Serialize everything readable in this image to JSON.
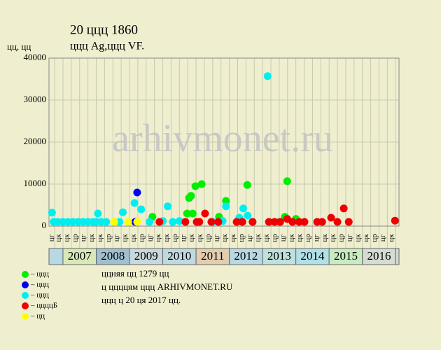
{
  "chart_data": {
    "type": "scatter",
    "title": "20 ццц 1860",
    "subtitle": "ццц Ag,ццц VF.",
    "y_label": "цц, цц",
    "watermark": "arhivmonet.ru",
    "xlim": [
      2006.58,
      2017.1
    ],
    "xticks": [
      2007,
      2008,
      2009,
      2010,
      2011,
      2012,
      2013,
      2014,
      2015,
      2016
    ],
    "year_colors": [
      "#d8e8b8",
      "#9fc0d0",
      "#c8d8dc",
      "#c0d8e0",
      "#e2cdb0",
      "#b8d8e4",
      "#c0e0dc",
      "#b0e0e8",
      "#c8ecc0",
      "#d4dcd4"
    ],
    "quarter_labels": [
      "цк",
      "цр",
      "цг",
      "цк"
    ],
    "ylim": [
      0,
      40000
    ],
    "yticks": [
      0,
      10000,
      20000,
      30000,
      40000
    ],
    "grid": true,
    "series": [
      {
        "name": "– ццц",
        "color": "#00ee00",
        "x": [
          2009.69,
          2010.73,
          2010.79,
          2010.85,
          2010.9,
          2010.98,
          2011.17,
          2011.69,
          2011.9,
          2012.54,
          2013.67,
          2013.74,
          2014.0
        ],
        "values": [
          2200,
          3000,
          6700,
          7200,
          3000,
          9500,
          10000,
          2200,
          6000,
          9800,
          2200,
          10700,
          1700
        ]
      },
      {
        "name": "– ццц",
        "color": "#0000ee",
        "x": [
          2009.23,
          2009.17
        ],
        "values": [
          8000,
          1000
        ]
      },
      {
        "name": "– ццц",
        "color": "#00eeee",
        "x": [
          2006.67,
          2006.72,
          2006.85,
          2007.0,
          2007.15,
          2007.3,
          2007.45,
          2007.6,
          2007.75,
          2007.9,
          2008.0,
          2008.05,
          2008.15,
          2008.3,
          2008.7,
          2008.8,
          2009.15,
          2009.35,
          2009.6,
          2010.0,
          2010.15,
          2010.3,
          2010.5,
          2011.5,
          2011.8,
          2011.9,
          2012.3,
          2012.42,
          2012.55,
          2012.7,
          2013.15,
          2013.5
        ],
        "values": [
          3200,
          1000,
          1000,
          1000,
          1000,
          1000,
          1000,
          1000,
          1000,
          1000,
          1000,
          3000,
          1000,
          1000,
          1000,
          3300,
          5500,
          4000,
          1000,
          1200,
          4700,
          1000,
          1200,
          1000,
          1200,
          4700,
          2000,
          4200,
          2500,
          1000,
          35700,
          1000
        ]
      },
      {
        "name": "– ццццБ",
        "color": "#ee0000",
        "x": [
          2009.9,
          2010.68,
          2011.02,
          2011.1,
          2011.27,
          2011.46,
          2011.67,
          2012.22,
          2012.39,
          2012.7,
          2013.19,
          2013.36,
          2013.53,
          2013.74,
          2013.9,
          2014.1,
          2014.26,
          2014.64,
          2014.79,
          2015.06,
          2015.25,
          2015.44,
          2015.59,
          2016.98
        ],
        "values": [
          1000,
          1000,
          1000,
          1000,
          3000,
          1000,
          1000,
          1000,
          1000,
          1000,
          1000,
          1000,
          1000,
          1700,
          1000,
          1000,
          1000,
          1000,
          1000,
          2000,
          1000,
          4200,
          1000,
          1300
        ]
      },
      {
        "name": "– цц",
        "color": "#ffff00",
        "x": [
          2008.54,
          2008.96,
          2009.23
        ],
        "values": [
          1000,
          1000,
          1000
        ]
      }
    ],
    "notes": [
      "ццняя цц 1279 цц",
      "ц ццццям ццц ARHIVMONET.RU",
      "ццц ц 20 ця 2017 цц."
    ]
  }
}
